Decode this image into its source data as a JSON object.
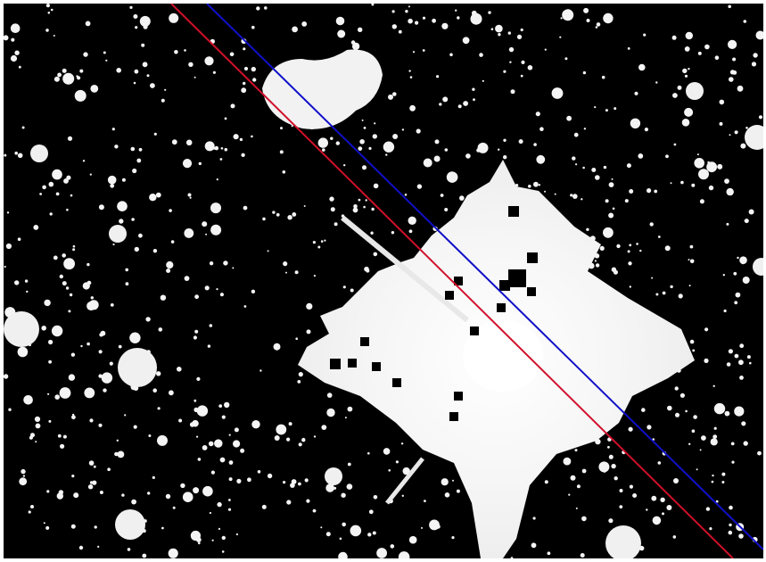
{
  "image": {
    "kind": "thresholded astronomical star field",
    "background_color": "#000000",
    "foreground_color": "#ffffff",
    "frame_color": "#ffffff",
    "icon": "star-field-image"
  },
  "overlay_lines": [
    {
      "name": "red-line",
      "color": "#d0102a"
    },
    {
      "name": "blue-line",
      "color": "#1010c8"
    }
  ]
}
